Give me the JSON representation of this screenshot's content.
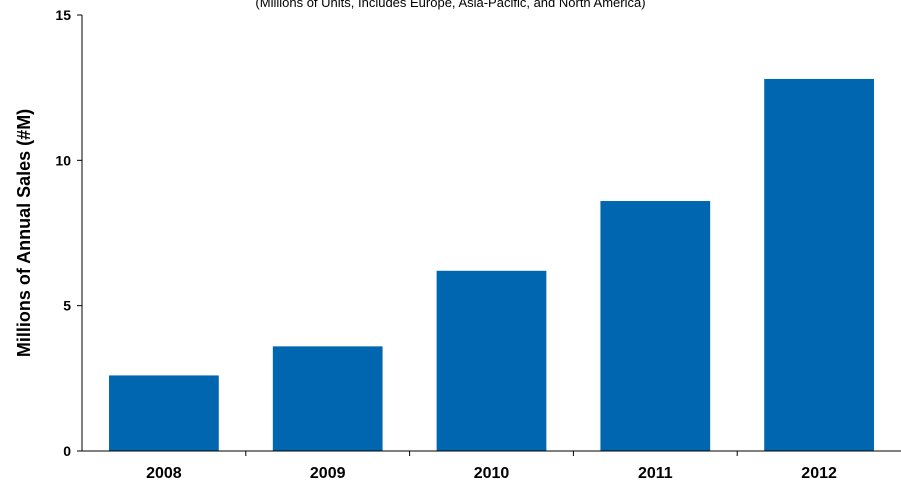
{
  "chart_data": {
    "type": "bar",
    "subtitle": "(Millions of Units, Includes Europe, Asia-Pacific, and North America)",
    "ylabel": "Millions of Annual Sales (#M)",
    "xlabel": "",
    "categories": [
      "2008",
      "2009",
      "2010",
      "2011",
      "2012"
    ],
    "values": [
      2.6,
      3.6,
      6.2,
      8.6,
      12.8
    ],
    "ylim": [
      0,
      15
    ],
    "yticks": [
      0,
      5,
      10,
      15
    ],
    "grid": false,
    "bar_color": "#0066b0"
  }
}
